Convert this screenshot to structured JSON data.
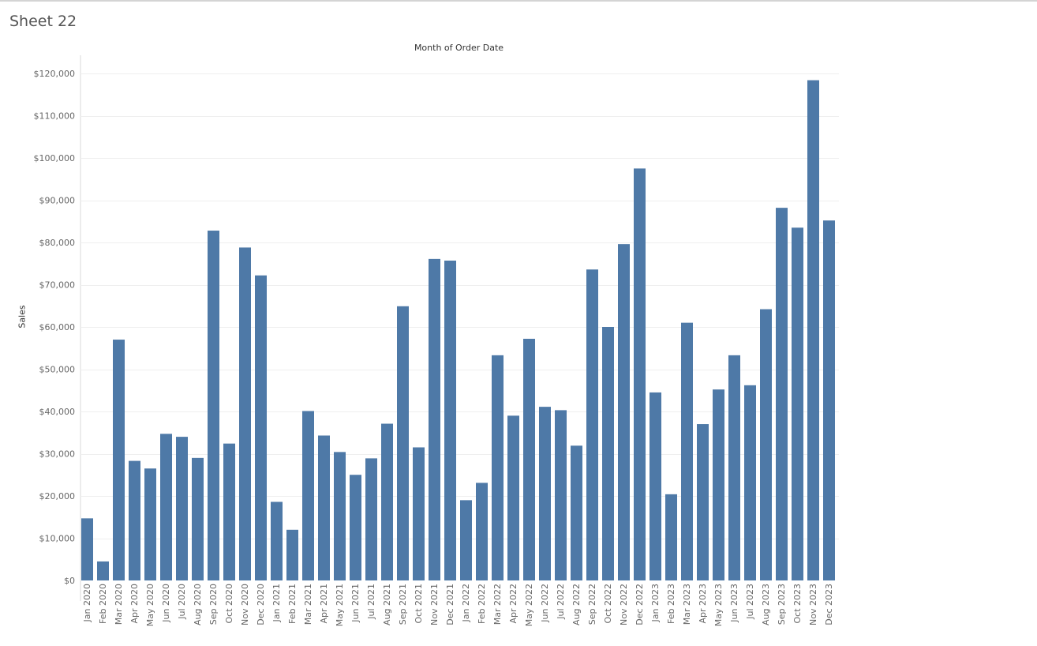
{
  "sheet": {
    "title": "Sheet 22"
  },
  "colors": {
    "bar": "#4e79a7",
    "gridline": "#efefef",
    "axis_line": "#d9d9d9",
    "tick_text": "#666666"
  },
  "chart_data": {
    "type": "bar",
    "title": "",
    "column_header": "Month of Order Date",
    "xlabel": "",
    "ylabel": "Sales",
    "ylim": [
      0,
      120000
    ],
    "yticks": [
      {
        "value": 0,
        "label": "$0"
      },
      {
        "value": 10000,
        "label": "$10,000"
      },
      {
        "value": 20000,
        "label": "$20,000"
      },
      {
        "value": 30000,
        "label": "$30,000"
      },
      {
        "value": 40000,
        "label": "$40,000"
      },
      {
        "value": 50000,
        "label": "$50,000"
      },
      {
        "value": 60000,
        "label": "$60,000"
      },
      {
        "value": 70000,
        "label": "$70,000"
      },
      {
        "value": 80000,
        "label": "$80,000"
      },
      {
        "value": 90000,
        "label": "$90,000"
      },
      {
        "value": 100000,
        "label": "$100,000"
      },
      {
        "value": 110000,
        "label": "$110,000"
      },
      {
        "value": 120000,
        "label": "$120,000"
      }
    ],
    "grid": true,
    "categories": [
      "Jan 2020",
      "Feb 2020",
      "Mar 2020",
      "Apr 2020",
      "May 2020",
      "Jun 2020",
      "Jul 2020",
      "Aug 2020",
      "Sep 2020",
      "Oct 2020",
      "Nov 2020",
      "Dec 2020",
      "Jan 2021",
      "Feb 2021",
      "Mar 2021",
      "Apr 2021",
      "May 2021",
      "Jun 2021",
      "Jul 2021",
      "Aug 2021",
      "Sep 2021",
      "Oct 2021",
      "Nov 2021",
      "Dec 2021",
      "Jan 2022",
      "Feb 2022",
      "Mar 2022",
      "Apr 2022",
      "May 2022",
      "Jun 2022",
      "Jul 2022",
      "Aug 2022",
      "Sep 2022",
      "Oct 2022",
      "Nov 2022",
      "Dec 2022",
      "Jan 2023",
      "Feb 2023",
      "Mar 2023",
      "Apr 2023",
      "May 2023",
      "Jun 2023",
      "Jul 2023",
      "Aug 2023",
      "Sep 2023",
      "Oct 2023",
      "Nov 2023",
      "Dec 2023"
    ],
    "values": [
      14700,
      4500,
      57000,
      28300,
      26500,
      34700,
      34000,
      29000,
      82800,
      32400,
      78800,
      72200,
      18600,
      12000,
      40100,
      34300,
      30400,
      25000,
      28900,
      37100,
      64900,
      31500,
      76100,
      75700,
      19000,
      23100,
      53300,
      39000,
      57200,
      41100,
      40300,
      31900,
      73600,
      60000,
      79600,
      97500,
      44500,
      20400,
      61000,
      37000,
      45200,
      53300,
      46200,
      64200,
      88200,
      83500,
      118400,
      85200
    ]
  }
}
